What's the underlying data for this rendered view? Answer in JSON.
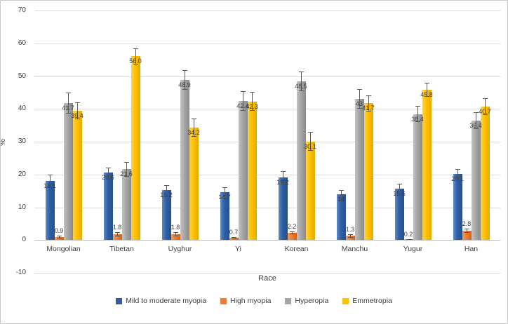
{
  "chart": {
    "xlabel": "Race",
    "ylabel": "%"
  },
  "chart_data": {
    "type": "bar",
    "title": "",
    "xlabel": "Race",
    "ylabel": "%",
    "ylim": [
      -10,
      70
    ],
    "ytick_step": 10,
    "grid": true,
    "legend_position": "bottom",
    "error_bars": true,
    "categories": [
      "Mongolian",
      "Tibetan",
      "Uyghur",
      "Yi",
      "Korean",
      "Manchu",
      "Yugur",
      "Han"
    ],
    "series": [
      {
        "name": "Mild to moderate myopia",
        "color": "#2E5FA3",
        "color_light": "#5c88cc",
        "color_dark": "#27508c",
        "values": [
          18.1,
          20.6,
          15.2,
          14.7,
          19.2,
          14,
          15.6,
          20.1
        ],
        "labels": [
          "18.1",
          "20.6",
          "15.2",
          "14.7",
          "19.2",
          "14",
          "15.6",
          "20.1"
        ],
        "errors": [
          1.8,
          1.5,
          1.5,
          1.5,
          1.8,
          1.3,
          1.5,
          1.5
        ]
      },
      {
        "name": "High myopia",
        "color": "#ED7D31",
        "color_light": "#f79c5d",
        "color_dark": "#cf6418",
        "values": [
          0.9,
          1.8,
          1.8,
          0.7,
          2.2,
          1.3,
          0.2,
          2.8
        ],
        "labels": [
          "0.9",
          "1.8",
          "1.8",
          "0.7",
          "2.2",
          "1.3",
          "0.2",
          "2.8"
        ],
        "errors": [
          0.4,
          0.6,
          0.6,
          0.3,
          0.5,
          0.5,
          0.15,
          0.7
        ]
      },
      {
        "name": "Hyperopia",
        "color": "#A5A5A5",
        "color_light": "#c2c2c2",
        "color_dark": "#8a8a8a",
        "values": [
          41.7,
          21.6,
          48.9,
          42.4,
          48.5,
          43,
          38.4,
          36.4
        ],
        "labels": [
          "41.7",
          "21.6",
          "48.9",
          "42.4",
          "48.5",
          "43",
          "38.4",
          "36.4"
        ],
        "errors": [
          3.2,
          2.2,
          3.0,
          3.0,
          3.0,
          3.0,
          2.5,
          2.5
        ]
      },
      {
        "name": "Emmetropia",
        "color": "#FFC000",
        "color_light": "#ffd24a",
        "color_dark": "#e3ab00",
        "values": [
          39.4,
          56.0,
          34.2,
          42.3,
          30.1,
          41.7,
          45.8,
          40.7
        ],
        "labels": [
          "39.4",
          "56.0",
          "34.2",
          "42.3",
          "30.1",
          "41.7",
          "45.8",
          "40.7"
        ],
        "errors": [
          2.5,
          2.5,
          2.8,
          2.8,
          2.8,
          2.5,
          2.2,
          2.5
        ]
      }
    ]
  }
}
